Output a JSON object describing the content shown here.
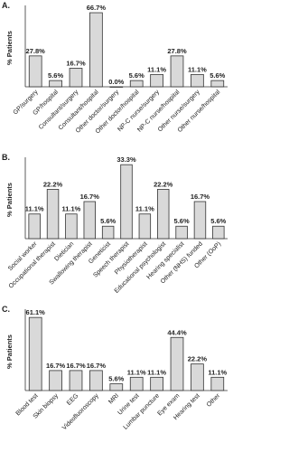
{
  "chart_data": [
    {
      "type": "bar",
      "title": "A.",
      "y_label": "% Patients",
      "color": "#d9d9d9",
      "ylim": [
        0,
        70
      ],
      "categories": [
        "GP/surgery",
        "GP/hospital",
        "Consultant/surgery",
        "Consultant/hospital",
        "Other doctor/surgery",
        "Other doctor/hospital",
        "NP-C nurse/surgery",
        "NP-C nurse/hospital",
        "Other nurse/surgery",
        "Other nurse/hospital"
      ],
      "values": [
        27.8,
        5.6,
        16.7,
        66.7,
        0,
        5.6,
        11.1,
        27.8,
        11.1,
        5.6
      ],
      "value_labels": [
        "27.8%",
        "5.6%",
        "16.7%",
        "66.7%",
        "0.0%",
        "5.6%",
        "11.1%",
        "27.8%",
        "11.1%",
        "5.6%"
      ]
    },
    {
      "type": "bar",
      "title": "B.",
      "y_label": "% Patients",
      "color": "#d9d9d9",
      "ylim": [
        0,
        35
      ],
      "categories": [
        "Social worker",
        "Occupational therapist",
        "Dietician",
        "Swallowing therapist",
        "Geneticist",
        "Speech therapist",
        "Physiotherapist",
        "Educational psychologist",
        "Hearing specialist",
        "Other (NHS) funded",
        "Other (OoP)"
      ],
      "values": [
        11.1,
        22.2,
        11.1,
        16.7,
        5.6,
        33.3,
        11.1,
        22.2,
        5.6,
        16.7,
        5.6
      ],
      "value_labels": [
        "11.1%",
        "22.2%",
        "11.1%",
        "16.7%",
        "5.6%",
        "33.3%",
        "11.1%",
        "22.2%",
        "5.6%",
        "16.7%",
        "5.6%"
      ]
    },
    {
      "type": "bar",
      "title": "C.",
      "y_label": "% Patients",
      "color": "#d9d9d9",
      "ylim": [
        0,
        65
      ],
      "categories": [
        "Blood test",
        "Skin biopsy",
        "EEG",
        "Videofluoroscopy",
        "MRI",
        "Urine test",
        "Lumbar puncture",
        "Eye exam",
        "Hearing test",
        "Other"
      ],
      "values": [
        61.1,
        16.7,
        16.7,
        16.7,
        5.6,
        11.1,
        11.1,
        44.4,
        22.2,
        11.1
      ],
      "value_labels": [
        "61.1%",
        "16.7%",
        "16.7%",
        "16.7%",
        "5.6%",
        "11.1%",
        "11.1%",
        "44.4%",
        "22.2%",
        "11.1%"
      ]
    }
  ]
}
